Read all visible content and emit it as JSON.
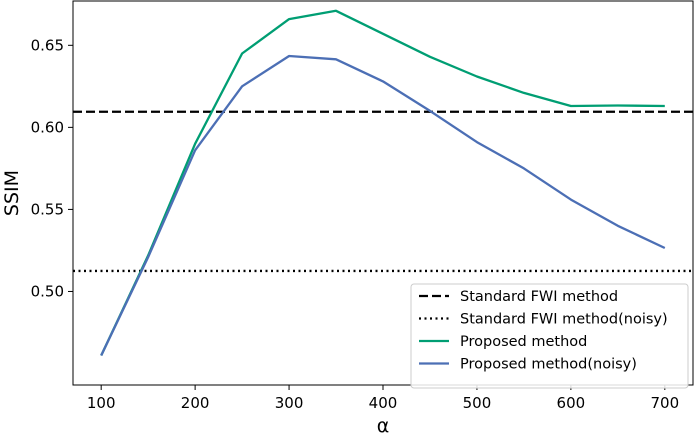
{
  "chart_data": {
    "type": "line",
    "title": "",
    "xlabel": "α",
    "ylabel": "SSIM",
    "xlim": [
      70,
      730
    ],
    "ylim": [
      0.443,
      0.677
    ],
    "xticks": [
      100,
      200,
      300,
      400,
      500,
      600,
      700
    ],
    "xtick_labels": [
      "100",
      "200",
      "300",
      "400",
      "500",
      "600",
      "700"
    ],
    "yticks": [
      0.5,
      0.55,
      0.6,
      0.65
    ],
    "ytick_labels": [
      "0.50",
      "0.55",
      "0.60",
      "0.65"
    ],
    "grid": false,
    "legend_position": "lower-right",
    "reference_lines": [
      {
        "name": "Standard FWI method",
        "y": 0.6095,
        "style": "dashed",
        "color": "#000000"
      },
      {
        "name": "Standard FWI method(noisy)",
        "y": 0.5125,
        "style": "dotted",
        "color": "#000000"
      }
    ],
    "series": [
      {
        "name": "Proposed method",
        "color": "#009e73",
        "x": [
          100,
          150,
          200,
          250,
          300,
          350,
          400,
          450,
          500,
          550,
          600,
          650,
          700
        ],
        "y": [
          0.461,
          0.522,
          0.59,
          0.645,
          0.666,
          0.671,
          0.657,
          0.643,
          0.631,
          0.621,
          0.613,
          0.6133,
          0.613
        ]
      },
      {
        "name": "Proposed method(noisy)",
        "color": "#4c6fb5",
        "x": [
          100,
          150,
          200,
          250,
          300,
          350,
          400,
          450,
          500,
          550,
          600,
          650,
          700
        ],
        "y": [
          0.461,
          0.521,
          0.586,
          0.625,
          0.6435,
          0.6415,
          0.628,
          0.61,
          0.591,
          0.575,
          0.556,
          0.54,
          0.5265
        ]
      }
    ],
    "legend": [
      {
        "label": "Standard FWI method",
        "style": "dashed",
        "color": "#000000"
      },
      {
        "label": "Standard FWI method(noisy)",
        "style": "dotted",
        "color": "#000000"
      },
      {
        "label": "Proposed method",
        "style": "solid",
        "color": "#009e73"
      },
      {
        "label": "Proposed method(noisy)",
        "style": "solid",
        "color": "#4c6fb5"
      }
    ]
  }
}
